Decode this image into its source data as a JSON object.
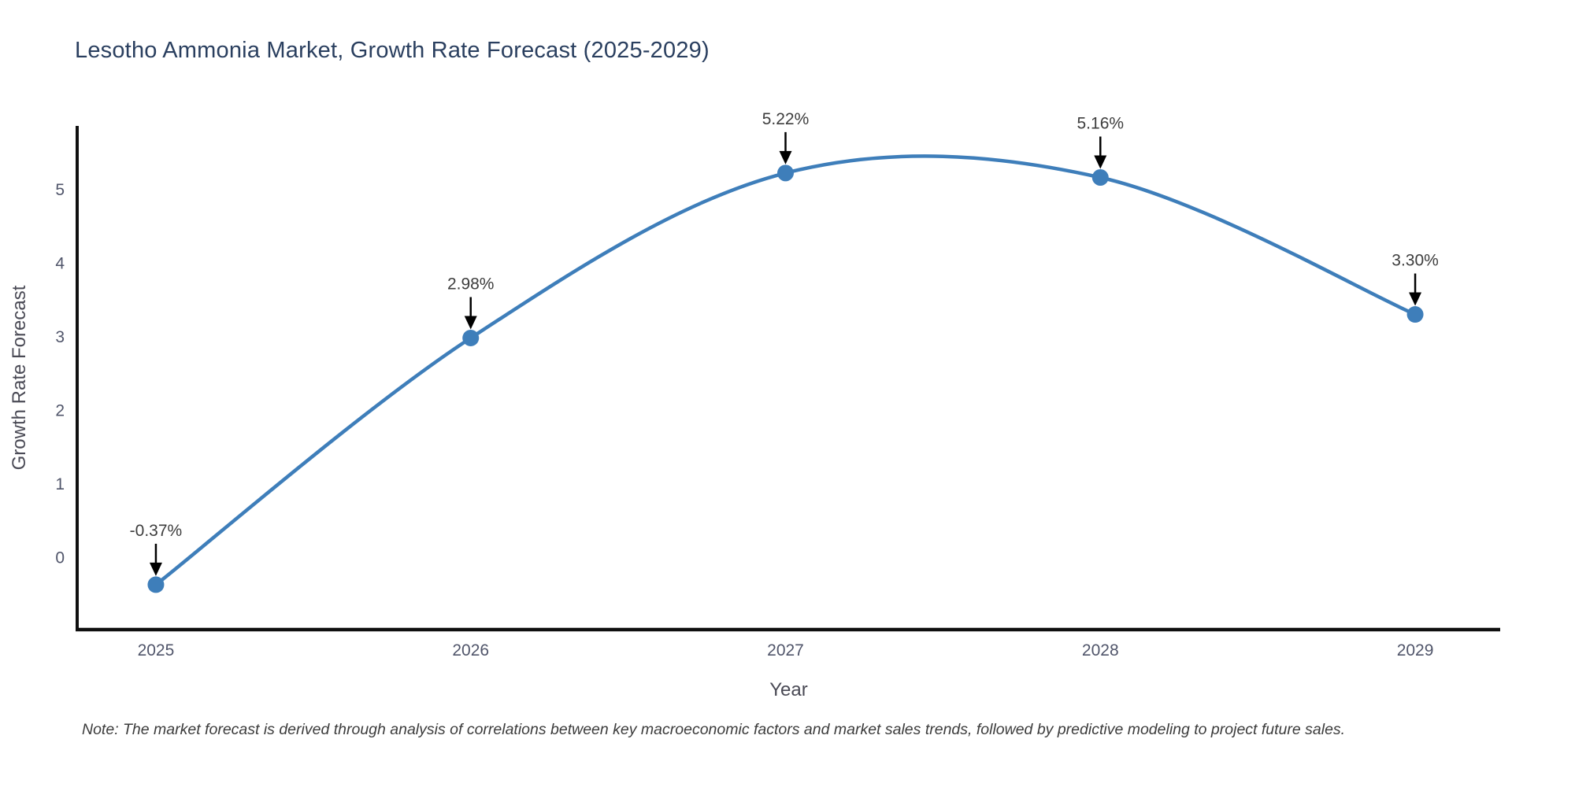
{
  "chart_data": {
    "type": "line",
    "title": "Lesotho Ammonia Market, Growth Rate Forecast (2025-2029)",
    "xlabel": "Year",
    "ylabel": "Growth Rate Forecast",
    "x": [
      2025,
      2026,
      2027,
      2028,
      2029
    ],
    "values": [
      -0.37,
      2.98,
      5.22,
      5.16,
      3.3
    ],
    "point_labels": [
      "-0.37%",
      "2.98%",
      "5.22%",
      "5.16%",
      "3.30%"
    ],
    "x_tick_labels": [
      "2025",
      "2026",
      "2027",
      "2028",
      "2029"
    ],
    "yticks": [
      0,
      1,
      2,
      3,
      4,
      5
    ],
    "xlim": [
      2024.75,
      2029.27
    ],
    "ylim": [
      -0.98,
      5.86
    ],
    "line_shape": "spline",
    "grid": false,
    "legend": "none",
    "colors": {
      "line": "#3e7eba",
      "marker": "#3e7eba",
      "axis": "#101010",
      "tick_label": "#50556a",
      "axis_title": "#4a4a55",
      "annotation": "#000000",
      "annotation_text": "#3d3d3d",
      "title": "#2a3f5f"
    }
  },
  "note": "Note: The market forecast is derived through analysis of correlations between key macroeconomic factors and market sales trends, followed by predictive modeling to project future sales."
}
